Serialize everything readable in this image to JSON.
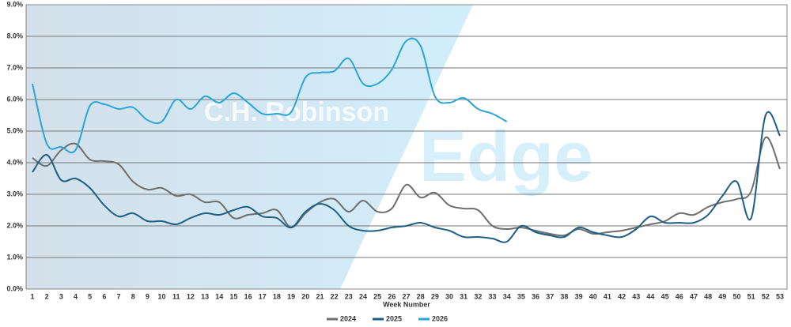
{
  "chart_data": {
    "type": "line",
    "x_label": "Week Number",
    "watermark": [
      "C.H. Robinson",
      "Edge"
    ],
    "categories": [
      "1",
      "2",
      "3",
      "4",
      "5",
      "6",
      "7",
      "8",
      "9",
      "10",
      "11",
      "12",
      "13",
      "14",
      "15",
      "16",
      "17",
      "18",
      "19",
      "20",
      "21",
      "22",
      "23",
      "24",
      "25",
      "26",
      "27",
      "28",
      "29",
      "30",
      "31",
      "32",
      "33",
      "34",
      "35",
      "36",
      "37",
      "38",
      "39",
      "40",
      "41",
      "42",
      "43",
      "44",
      "45",
      "46",
      "47",
      "48",
      "49",
      "50",
      "51",
      "52",
      "53"
    ],
    "series": [
      {
        "name": "2024",
        "color": "#6e6e6e",
        "values": [
          4.15,
          3.9,
          4.4,
          4.6,
          4.1,
          4.05,
          3.95,
          3.4,
          3.15,
          3.2,
          2.95,
          3.0,
          2.75,
          2.75,
          2.25,
          2.35,
          2.4,
          2.5,
          1.95,
          2.4,
          2.75,
          2.85,
          2.45,
          2.8,
          2.45,
          2.55,
          3.3,
          2.9,
          3.05,
          2.65,
          2.55,
          2.5,
          2.0,
          1.9,
          1.95,
          1.85,
          1.75,
          1.7,
          1.9,
          1.75,
          1.8,
          1.85,
          1.95,
          2.05,
          2.15,
          2.4,
          2.35,
          2.6,
          2.75,
          2.85,
          3.1,
          4.8,
          3.8
        ]
      },
      {
        "name": "2025",
        "color": "#1d5f84",
        "values": [
          3.7,
          4.25,
          3.45,
          3.5,
          3.2,
          2.65,
          2.3,
          2.4,
          2.15,
          2.15,
          2.05,
          2.25,
          2.4,
          2.35,
          2.5,
          2.6,
          2.3,
          2.25,
          1.95,
          2.45,
          2.7,
          2.5,
          2.0,
          1.85,
          1.85,
          1.95,
          2.0,
          2.1,
          1.95,
          1.85,
          1.65,
          1.65,
          1.6,
          1.5,
          2.0,
          1.8,
          1.7,
          1.65,
          1.95,
          1.8,
          1.7,
          1.65,
          1.9,
          2.3,
          2.1,
          2.1,
          2.1,
          2.35,
          2.95,
          3.4,
          2.25,
          5.5,
          4.85
        ]
      },
      {
        "name": "2026",
        "color": "#2aa6d6",
        "values": [
          6.5,
          4.6,
          4.5,
          4.4,
          5.8,
          5.85,
          5.7,
          5.75,
          5.35,
          5.3,
          6.0,
          5.7,
          6.1,
          5.9,
          6.2,
          5.9,
          5.55,
          5.55,
          5.6,
          6.7,
          6.85,
          6.9,
          7.3,
          6.5,
          6.5,
          6.95,
          7.85,
          7.7,
          6.1,
          5.9,
          6.05,
          5.7,
          5.55,
          5.3,
          null,
          null,
          null,
          null,
          null,
          null,
          null,
          null,
          null,
          null,
          null,
          null,
          null,
          null,
          null,
          null,
          null,
          null,
          null
        ]
      }
    ],
    "ylim": [
      0,
      9
    ],
    "yticks": [
      {
        "value": 0,
        "label": "0.0%"
      },
      {
        "value": 1,
        "label": "1.0%"
      },
      {
        "value": 2,
        "label": "2.0%"
      },
      {
        "value": 3,
        "label": "3.0%"
      },
      {
        "value": 4,
        "label": "4.0%"
      },
      {
        "value": 5,
        "label": "5.0%"
      },
      {
        "value": 6,
        "label": "6.0%"
      },
      {
        "value": 7,
        "label": "7.0%"
      },
      {
        "value": 8,
        "label": "8.0%"
      },
      {
        "value": 9,
        "label": "9.0%"
      }
    ],
    "grid": true,
    "legend": "bottom"
  }
}
